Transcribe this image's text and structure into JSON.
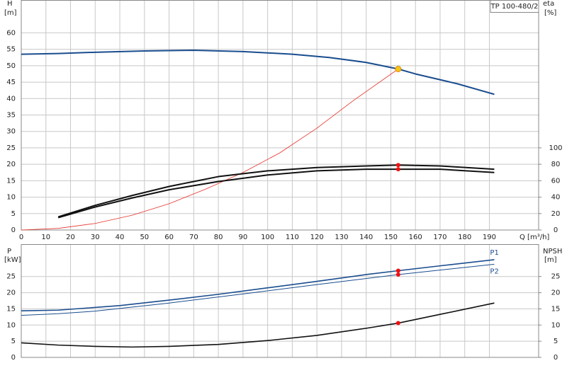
{
  "chart_data": [
    {
      "type": "line",
      "title": "TP 100-480/2",
      "xlabel": "Q [m³/h]",
      "ylabel": "H",
      "yunit": "[m]",
      "y2label": "eta",
      "y2unit": "[%]",
      "xlim": [
        0,
        210
      ],
      "ylim": [
        0,
        70
      ],
      "y2lim": [
        0,
        280
      ],
      "xtick_labels": true,
      "grid": true,
      "xticks": [
        0,
        10,
        20,
        30,
        40,
        50,
        60,
        70,
        80,
        90,
        100,
        110,
        120,
        130,
        140,
        150,
        160,
        170,
        180,
        190
      ],
      "yticks": [
        0,
        5,
        10,
        15,
        20,
        25,
        30,
        35,
        40,
        45,
        50,
        55,
        60
      ],
      "y2ticks": [
        0,
        20,
        40,
        60,
        80,
        100
      ],
      "series": [
        {
          "color": "#1a4d8f",
          "width": 2,
          "mode": "line",
          "x": [
            0,
            15,
            30,
            50,
            70,
            90,
            110,
            125,
            140,
            153,
            160,
            177,
            192
          ],
          "values": [
            53.5,
            53.7,
            54.1,
            54.5,
            54.7,
            54.3,
            53.5,
            52.5,
            51,
            49,
            47.5,
            44.5,
            41.3
          ]
        },
        {
          "color": "#e8322a",
          "width": 0.8,
          "mode": "line",
          "x": [
            0,
            15,
            30,
            45,
            60,
            75,
            90,
            105,
            120,
            135,
            153
          ],
          "values": [
            0,
            0.5,
            2,
            4.5,
            8,
            12.5,
            17.5,
            23.5,
            31,
            39.5,
            49
          ]
        },
        {
          "color": "#111111",
          "width": 2,
          "mode": "line",
          "axis": "y2",
          "x": [
            15,
            30,
            45,
            60,
            80,
            100,
            120,
            140,
            153,
            170,
            192
          ],
          "values": [
            16,
            30,
            42,
            53,
            65,
            72,
            76,
            78,
            79,
            78,
            74
          ]
        },
        {
          "color": "#111111",
          "width": 2,
          "mode": "line",
          "axis": "y2",
          "x": [
            15,
            30,
            45,
            60,
            80,
            100,
            120,
            140,
            153,
            170,
            192
          ],
          "values": [
            15,
            28,
            39,
            49,
            59,
            67,
            72,
            74,
            74,
            74,
            70
          ]
        },
        {
          "color": "#f5c518",
          "mode": "markers",
          "x": [
            153
          ],
          "values": [
            49
          ]
        },
        {
          "color": "#ee1111",
          "mode": "markers",
          "axis": "y2",
          "x": [
            153,
            153
          ],
          "values": [
            79,
            74
          ]
        }
      ]
    },
    {
      "type": "line",
      "ylabel": "P",
      "yunit": "[kW]",
      "y2label": "NPSH",
      "y2unit": "[m]",
      "xlim": [
        0,
        210
      ],
      "ylim": [
        0,
        35
      ],
      "y2lim": [
        0,
        35
      ],
      "xtick_labels": false,
      "grid": true,
      "xticks": [
        0,
        10,
        20,
        30,
        40,
        50,
        60,
        70,
        80,
        90,
        100,
        110,
        120,
        130,
        140,
        150,
        160,
        170,
        180,
        190
      ],
      "yticks": [
        0,
        5,
        10,
        15,
        20,
        25
      ],
      "y2ticks": [
        0,
        5,
        10,
        15,
        20,
        25
      ],
      "series": [
        {
          "name": "P1",
          "label_side": "above",
          "color": "#1a4d8f",
          "width": 1.6,
          "mode": "line",
          "x": [
            0,
            15,
            40,
            60,
            80,
            100,
            120,
            140,
            153,
            170,
            192
          ],
          "values": [
            14.4,
            14.6,
            16,
            17.7,
            19.5,
            21.5,
            23.5,
            25.6,
            26.8,
            28.3,
            30.2
          ]
        },
        {
          "name": "P2",
          "label_side": "below",
          "color": "#1a4d8f",
          "width": 1,
          "mode": "line",
          "x": [
            0,
            15,
            30,
            60,
            90,
            120,
            153,
            192
          ],
          "values": [
            13,
            13.5,
            14.3,
            16.8,
            19.6,
            22.5,
            25.6,
            28.8
          ]
        },
        {
          "color": "#111111",
          "width": 1.6,
          "mode": "line",
          "axis": "y2",
          "x": [
            0,
            15,
            30,
            45,
            60,
            80,
            100,
            120,
            140,
            153,
            170,
            192
          ],
          "values": [
            4.5,
            3.8,
            3.4,
            3.2,
            3.4,
            4,
            5.2,
            6.8,
            9,
            10.6,
            13.3,
            16.8
          ]
        },
        {
          "color": "#ee1111",
          "mode": "markers",
          "x": [
            153,
            153
          ],
          "values": [
            26.8,
            25.6
          ]
        },
        {
          "color": "#ee1111",
          "mode": "markers",
          "axis": "y2",
          "x": [
            153
          ],
          "values": [
            10.6
          ]
        }
      ]
    }
  ]
}
